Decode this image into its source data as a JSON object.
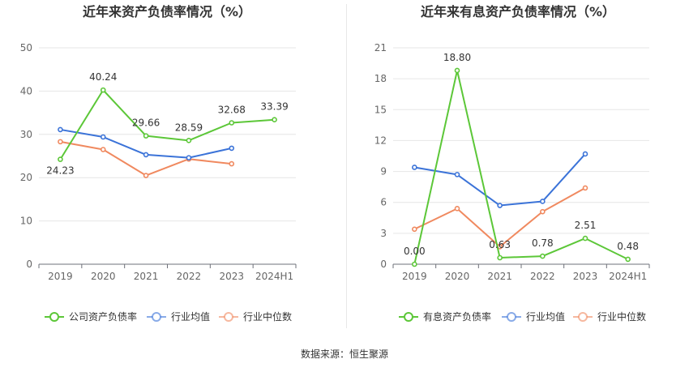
{
  "source_note": "数据来源：恒生聚源",
  "colors": {
    "company": "#5cc738",
    "average": "#3b73d8",
    "median": "#f0895f"
  },
  "chart_data": [
    {
      "type": "line",
      "title": "近年来资产负债率情况（%）",
      "categories": [
        "2019",
        "2020",
        "2021",
        "2022",
        "2023",
        "2024H1"
      ],
      "ylim": [
        0,
        50
      ],
      "yticks": [
        0,
        10,
        20,
        30,
        40,
        50
      ],
      "grid": true,
      "legend_position": "bottom",
      "series": [
        {
          "name": "公司资产负债率",
          "values": [
            24.23,
            40.24,
            29.66,
            28.59,
            32.68,
            33.39
          ],
          "labels": [
            "24.23",
            "40.24",
            "29.66",
            "28.59",
            "32.68",
            "33.39"
          ]
        },
        {
          "name": "行业均值",
          "values": [
            31.1,
            29.4,
            25.3,
            24.6,
            26.8,
            null
          ]
        },
        {
          "name": "行业中位数",
          "values": [
            28.3,
            26.5,
            20.5,
            24.3,
            23.2,
            null
          ]
        }
      ]
    },
    {
      "type": "line",
      "title": "近年来有息资产负债率情况（%）",
      "categories": [
        "2019",
        "2020",
        "2021",
        "2022",
        "2023",
        "2024H1"
      ],
      "ylim": [
        0,
        21
      ],
      "yticks": [
        0,
        3,
        6,
        9,
        12,
        15,
        18,
        21
      ],
      "grid": true,
      "legend_position": "bottom",
      "series": [
        {
          "name": "有息资产负债率",
          "values": [
            0.0,
            18.8,
            0.63,
            0.78,
            2.51,
            0.48
          ],
          "labels": [
            "0.00",
            "18.80",
            "0.63",
            "0.78",
            "2.51",
            "0.48"
          ]
        },
        {
          "name": "行业均值",
          "values": [
            9.4,
            8.7,
            5.7,
            6.1,
            10.7,
            null
          ]
        },
        {
          "name": "行业中位数",
          "values": [
            3.4,
            5.4,
            1.7,
            5.1,
            7.4,
            null
          ]
        }
      ]
    }
  ]
}
